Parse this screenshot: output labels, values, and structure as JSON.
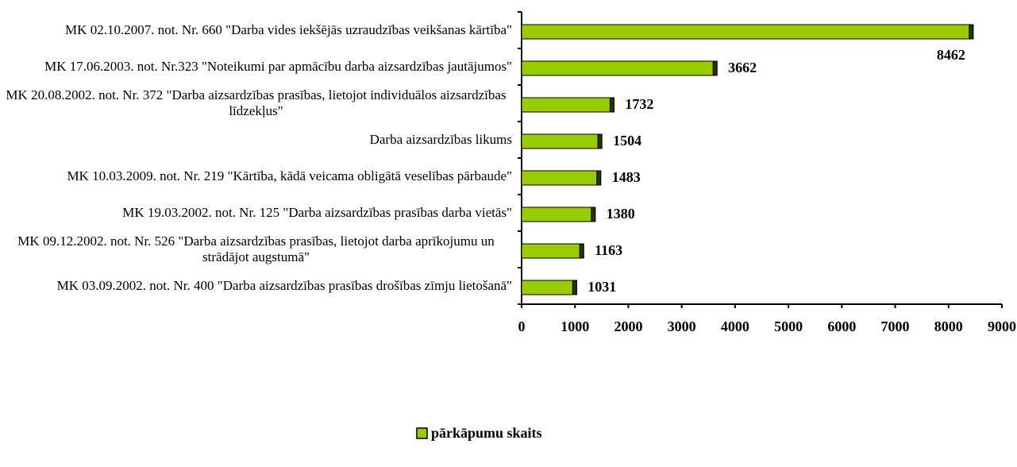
{
  "chart_data": {
    "type": "bar",
    "orientation": "horizontal",
    "categories": [
      "MK 02.10.2007. not. Nr. 660 \"Darba vides iekšējās uzraudzības veikšanas kārtība\"",
      "MK 17.06.2003. not. Nr.323 \"Noteikumi par apmācību darba aizsardzības jautājumos\"",
      "MK 20.08.2002. not. Nr. 372 \"Darba aizsardzības prasības, lietojot individuālos aizsardzības līdzekļus\"",
      "Darba aizsardzības likums",
      "MK 10.03.2009. not. Nr. 219 \"Kārtība, kādā veicama obligātā veselības pārbaude\"",
      "MK 19.03.2002. not. Nr. 125 \"Darba aizsardzības prasības darba vietās\"",
      "MK 09.12.2002. not. Nr. 526 \"Darba aizsardzības prasības, lietojot darba aprīkojumu un strādājot augstumā\"",
      "MK 03.09.2002. not. Nr. 400 \"Darba aizsardzības prasības drošības zīmju lietošanā\""
    ],
    "series": [
      {
        "name": "pārkāpumu skaits",
        "color": "#99cc00",
        "values": [
          8462,
          3662,
          1732,
          1504,
          1483,
          1380,
          1163,
          1031
        ]
      }
    ],
    "xlim": [
      0,
      9000
    ],
    "xticks": [
      0,
      1000,
      2000,
      3000,
      4000,
      5000,
      6000,
      7000,
      8000,
      9000
    ],
    "grid": false,
    "legend": "bottom"
  }
}
